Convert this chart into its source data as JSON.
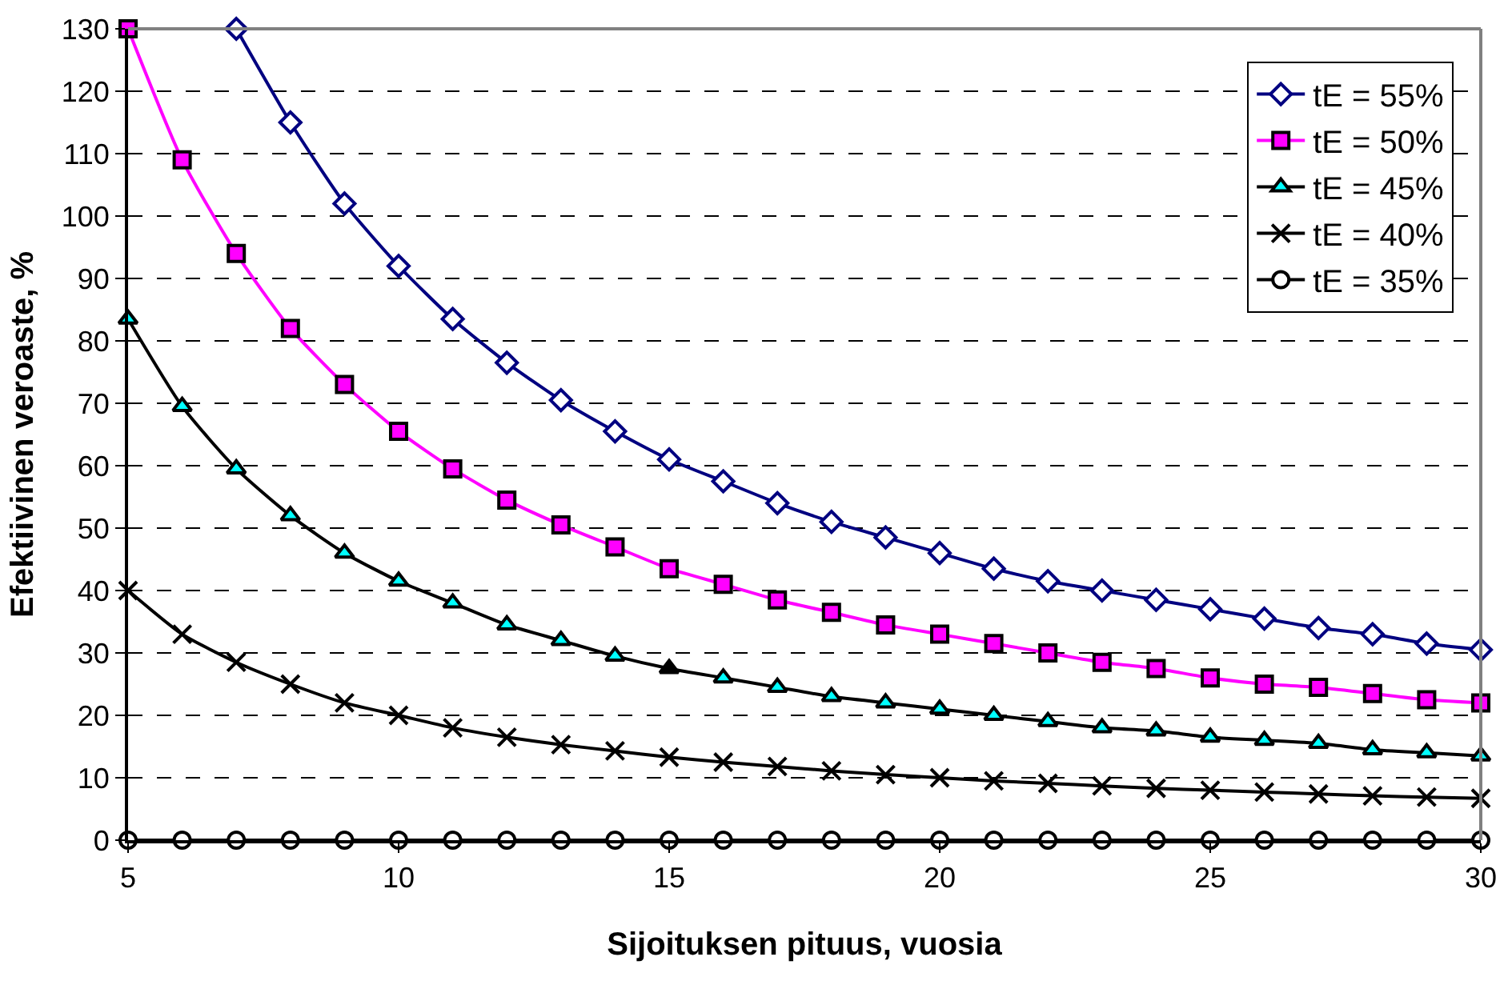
{
  "chart_data": {
    "type": "line",
    "xlabel": "Sijoituksen pituus, vuosia",
    "ylabel": "Efektiivinen veroaste, %",
    "x": [
      5,
      6,
      7,
      8,
      9,
      10,
      11,
      12,
      13,
      14,
      15,
      16,
      17,
      18,
      19,
      20,
      21,
      22,
      23,
      24,
      25,
      26,
      27,
      28,
      29,
      30
    ],
    "xlim": [
      5,
      30
    ],
    "xticks": [
      5,
      10,
      15,
      20,
      25,
      30
    ],
    "ylim": [
      0,
      130
    ],
    "yticks": [
      0,
      10,
      20,
      30,
      40,
      50,
      60,
      70,
      80,
      90,
      100,
      110,
      120,
      130
    ],
    "grid": "y",
    "legend": "top right",
    "line_style": "solid",
    "series": [
      {
        "name": "tE = 55%",
        "color": "#000080",
        "marker": "diamond",
        "values": [
          null,
          null,
          130,
          115,
          102,
          92,
          83.5,
          76.5,
          70.5,
          65.5,
          61,
          57.5,
          54,
          51,
          48.5,
          46,
          43.5,
          41.5,
          40,
          38.5,
          37,
          35.5,
          34,
          33,
          31.5,
          30.5
        ]
      },
      {
        "name": "tE = 50%",
        "color": "#ff00ff",
        "marker": "square",
        "colors": [
          "#ff00ff",
          "#ff00ff",
          "#ff00ff",
          "#ff00ff",
          "#ff00ff",
          "#ff00ff",
          "#ff00ff",
          "#ff00ff",
          "#ff00ff",
          "#ff00ff",
          "#ff00ff",
          "#ff00ff",
          "#ff00ff",
          "#ff00ff",
          "#ff00ff",
          "#ff00ff",
          "#ff00ff",
          "#ff00ff",
          "#ff00ff",
          "#ff00ff",
          "#ff00ff",
          "#ff00ff",
          "#ff00ff",
          "#ff00ff",
          "#ff00ff",
          "#ff00ff"
        ],
        "values": [
          130,
          109,
          94,
          82,
          73,
          65.5,
          59.5,
          54.5,
          50.5,
          47,
          43.5,
          41,
          38.5,
          36.5,
          34.5,
          33,
          31.5,
          30,
          28.5,
          27.5,
          26,
          25,
          24.5,
          23.5,
          22.5,
          22
        ]
      },
      {
        "name": "tE = 45%",
        "color": "#000000",
        "marker": "triangle",
        "colors": [
          "#00ffff",
          "#00ffff",
          "#00ffff",
          "#00ffff",
          "#00ffff",
          "#00ffff",
          "#00ffff",
          "#00ffff",
          "#00ffff",
          "#00ffff",
          "#000000",
          "#00ffff",
          "#00ffff",
          "#00ffff",
          "#00ffff",
          "#00ffff",
          "#00ffff",
          "#00ffff",
          "#00ffff",
          "#00ffff",
          "#00ffff",
          "#00ffff",
          "#00ffff",
          "#00ffff",
          "#00ffff",
          "#00ffff"
        ],
        "values": [
          83.5,
          69.5,
          59.5,
          52,
          46,
          41.5,
          38,
          34.5,
          32,
          29.5,
          27.5,
          26,
          24.5,
          23,
          22,
          21,
          20,
          19,
          18,
          17.5,
          16.5,
          16,
          15.5,
          14.5,
          14,
          13.5
        ]
      },
      {
        "name": "tE = 40%",
        "color": "#000000",
        "marker": "cross",
        "values": [
          40,
          33,
          28.5,
          25,
          22,
          20,
          18,
          16.5,
          15.3,
          14.3,
          13.3,
          12.5,
          11.8,
          11.1,
          10.5,
          10,
          9.5,
          9.1,
          8.7,
          8.3,
          8,
          7.7,
          7.4,
          7.1,
          6.9,
          6.7
        ]
      },
      {
        "name": "tE = 35%",
        "color": "#000000",
        "marker": "circle",
        "values": [
          0,
          0,
          0,
          0,
          0,
          0,
          0,
          0,
          0,
          0,
          0,
          0,
          0,
          0,
          0,
          0,
          0,
          0,
          0,
          0,
          0,
          0,
          0,
          0,
          0,
          0
        ]
      }
    ]
  }
}
